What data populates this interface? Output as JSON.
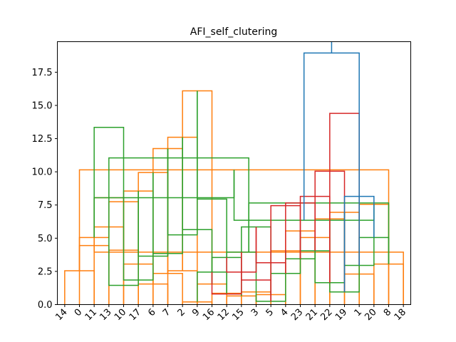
{
  "chart_data": {
    "type": "dendrogram",
    "title": "AFI_self_clutering",
    "xlabel": "",
    "ylabel": "",
    "ylim": [
      0,
      19.8
    ],
    "yticks": [
      0.0,
      2.5,
      5.0,
      7.5,
      10.0,
      12.5,
      15.0,
      17.5
    ],
    "ytick_labels": [
      "0.0",
      "2.5",
      "5.0",
      "7.5",
      "10.0",
      "12.5",
      "15.0",
      "17.5"
    ],
    "leaf_labels": [
      "14",
      "0",
      "11",
      "13",
      "10",
      "17",
      "6",
      "7",
      "2",
      "9",
      "16",
      "12",
      "15",
      "3",
      "5",
      "4",
      "23",
      "21",
      "22",
      "19",
      "1",
      "20",
      "8",
      "18"
    ],
    "grid": false,
    "colors": {
      "orange": "#ff7f0e",
      "green": "#2ca02c",
      "red": "#d62728",
      "blue": "#1f77b4"
    },
    "links": [
      {
        "a": 0,
        "b": 2,
        "h": 2.55,
        "color": "orange"
      },
      {
        "a": 1,
        "b": 3,
        "h": 4.45,
        "color": "orange"
      },
      {
        "a": 2,
        "b": 4,
        "h": 5.85,
        "color": "orange"
      },
      {
        "a": 3,
        "b": 5,
        "h": 4.1,
        "color": "orange"
      },
      {
        "a": 4,
        "b": 6,
        "h": 3.05,
        "color": "orange"
      },
      {
        "a": 5,
        "b": 7,
        "h": 1.55,
        "color": "orange"
      },
      {
        "a": 6,
        "b": 8,
        "h": 2.35,
        "color": "orange"
      },
      {
        "a": 7,
        "b": 9,
        "h": 2.55,
        "color": "orange"
      },
      {
        "a": 8,
        "b": 10,
        "h": 0.2,
        "color": "orange"
      },
      {
        "a": 9,
        "b": 11,
        "h": 1.55,
        "color": "orange"
      },
      {
        "a": 10,
        "b": 12,
        "h": 0.85,
        "color": "orange"
      },
      {
        "a": 11,
        "b": 13,
        "h": 0.65,
        "color": "orange"
      },
      {
        "a": 12,
        "b": 14,
        "h": 0.95,
        "color": "orange"
      },
      {
        "a": 13,
        "b": 15,
        "h": 0.75,
        "color": "orange"
      },
      {
        "a": 14,
        "b": 16,
        "h": 4.05,
        "color": "orange"
      },
      {
        "a": 15,
        "b": 17,
        "h": 5.55,
        "color": "orange"
      },
      {
        "a": 16,
        "b": 18,
        "h": 5.05,
        "color": "orange"
      },
      {
        "a": 17,
        "b": 19,
        "h": 6.45,
        "color": "orange"
      },
      {
        "a": 18,
        "b": 20,
        "h": 6.95,
        "color": "orange"
      },
      {
        "a": 19,
        "b": 21,
        "h": 2.3,
        "color": "orange"
      },
      {
        "a": 20,
        "b": 22,
        "h": 7.55,
        "color": "orange"
      },
      {
        "a": 21,
        "b": 23,
        "h": 3.05,
        "color": "orange"
      },
      {
        "a": 22,
        "b": 24,
        "h": 10.15,
        "color": "orange"
      },
      {
        "a": 23,
        "b": 25,
        "h": 3.95,
        "color": "orange"
      },
      {
        "a": 24,
        "b": 26,
        "h": 5.05,
        "color": "orange"
      },
      {
        "a": 25,
        "b": 27,
        "h": 8.05,
        "color": "orange"
      },
      {
        "a": 26,
        "b": 28,
        "h": 7.75,
        "color": "orange"
      },
      {
        "a": 27,
        "b": 29,
        "h": 8.55,
        "color": "orange"
      },
      {
        "a": 28,
        "b": 30,
        "h": 9.95,
        "color": "orange"
      },
      {
        "a": 29,
        "b": 31,
        "h": 11.75,
        "color": "orange"
      },
      {
        "a": 30,
        "b": 32,
        "h": 12.6,
        "color": "orange"
      },
      {
        "a": 31,
        "b": 33,
        "h": 16.1,
        "color": "orange"
      },
      {
        "a": 32,
        "b": 34,
        "h": 2.45,
        "color": "green"
      },
      {
        "a": 33,
        "b": 35,
        "h": 3.55,
        "color": "green"
      },
      {
        "a": 34,
        "b": 36,
        "h": 3.95,
        "color": "green"
      },
      {
        "a": 35,
        "b": 37,
        "h": 5.85,
        "color": "green"
      },
      {
        "a": 36,
        "b": 38,
        "h": 0.25,
        "color": "green"
      },
      {
        "a": 37,
        "b": 39,
        "h": 2.35,
        "color": "green"
      },
      {
        "a": 38,
        "b": 40,
        "h": 3.45,
        "color": "green"
      },
      {
        "a": 39,
        "b": 41,
        "h": 4.05,
        "color": "green"
      },
      {
        "a": 40,
        "b": 42,
        "h": 1.65,
        "color": "green"
      },
      {
        "a": 41,
        "b": 43,
        "h": 0.95,
        "color": "green"
      },
      {
        "a": 42,
        "b": 44,
        "h": 2.95,
        "color": "green"
      },
      {
        "a": 43,
        "b": 45,
        "h": 5.05,
        "color": "green"
      },
      {
        "a": 44,
        "b": 46,
        "h": 6.35,
        "color": "green"
      },
      {
        "a": 45,
        "b": 47,
        "h": 7.65,
        "color": "green"
      },
      {
        "a": 46,
        "b": 48,
        "h": 8.05,
        "color": "green"
      },
      {
        "a": 47,
        "b": 49,
        "h": 11.05,
        "color": "green"
      },
      {
        "a": 48,
        "b": 50,
        "h": 13.35,
        "color": "green"
      },
      {
        "a": 49,
        "b": 51,
        "h": 1.45,
        "color": "green"
      },
      {
        "a": 50,
        "b": 52,
        "h": 1.85,
        "color": "green"
      },
      {
        "a": 51,
        "b": 53,
        "h": 3.65,
        "color": "green"
      },
      {
        "a": 52,
        "b": 54,
        "h": 3.85,
        "color": "green"
      },
      {
        "a": 53,
        "b": 55,
        "h": 5.25,
        "color": "green"
      },
      {
        "a": 54,
        "b": 56,
        "h": 5.65,
        "color": "green"
      },
      {
        "a": 55,
        "b": 57,
        "h": 7.95,
        "color": "green"
      },
      {
        "a": 56,
        "b": 58,
        "h": 0.8,
        "color": "red"
      },
      {
        "a": 57,
        "b": 59,
        "h": 2.45,
        "color": "red"
      },
      {
        "a": 58,
        "b": 60,
        "h": 1.85,
        "color": "red"
      },
      {
        "a": 59,
        "b": 61,
        "h": 3.15,
        "color": "red"
      },
      {
        "a": 60,
        "b": 62,
        "h": 7.45,
        "color": "red"
      },
      {
        "a": 61,
        "b": 63,
        "h": 7.65,
        "color": "red"
      },
      {
        "a": 62,
        "b": 64,
        "h": 8.15,
        "color": "red"
      },
      {
        "a": 63,
        "b": 65,
        "h": 10.05,
        "color": "red"
      },
      {
        "a": 64,
        "b": 66,
        "h": 14.4,
        "color": "red"
      },
      {
        "a": 65,
        "b": 67,
        "h": 8.15,
        "color": "blue"
      },
      {
        "a": 66,
        "b": 68,
        "h": 18.95,
        "color": "blue"
      }
    ]
  }
}
